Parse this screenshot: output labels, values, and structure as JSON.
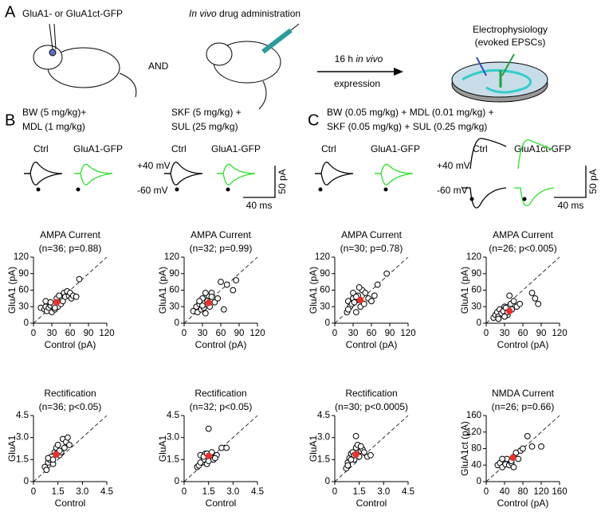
{
  "figure": {
    "panel_labels": [
      "A",
      "B",
      "C"
    ],
    "a": {
      "construct": "GluA1- or GluA1ct-GFP",
      "drug_prefix": "In vivo",
      "drug_suffix": " drug administration",
      "and": "AND",
      "arrow_top_prefix": "16 h ",
      "arrow_top_italic": "in vivo",
      "arrow_bottom": "expression",
      "ephys_1": "Electrophysiology",
      "ephys_2": "(evoked EPSCs)"
    },
    "b": {
      "cond1_line1": "BW (5 mg/kg)+",
      "cond1_line2": "MDL (1 mg/kg)",
      "cond2_line1": "SKF (5 mg/kg) +",
      "cond2_line2": "SUL (25 mg/kg)",
      "ctrl1": "Ctrl",
      "gfp1": "GluA1-GFP",
      "ctrl2": "Ctrl",
      "gfp2": "GluA1-GFP",
      "plus40": "+40 mV",
      "minus60": "-60 mV",
      "scale_y": "50 pA",
      "scale_x": "40 ms"
    },
    "c": {
      "cond_line1": "BW (0.05 mg/kg) + MDL (0.01 mg/kg) +",
      "cond_line2": "SKF (0.05 mg/kg) + SUL (0.25 mg/kg)",
      "ctrl1": "Ctrl",
      "gfp1": "GluA1-GFP",
      "ctrl2": "Ctrl",
      "gfp2": "GluA1ct-GFP",
      "plus40": "+40 mV",
      "minus60": "-60 mV",
      "scale_y": "50 pA",
      "scale_x": "40 ms"
    }
  },
  "chart_data": [
    {
      "type": "scatter",
      "title": "AMPA Current",
      "subtitle": "(n=36; p=0.88)",
      "xlabel": "Control (pA)",
      "ylabel": "GluA1 (pA)",
      "xlim": [
        0,
        120
      ],
      "ylim": [
        0,
        120
      ],
      "xticks": [
        0,
        30,
        60,
        90,
        120
      ],
      "yticks": [
        0,
        30,
        60,
        90,
        120
      ],
      "points": {
        "x": [
          12,
          18,
          20,
          22,
          25,
          28,
          30,
          32,
          35,
          38,
          40,
          42,
          45,
          48,
          50,
          52,
          55,
          58,
          60,
          62,
          65,
          70,
          75,
          20,
          28,
          35
        ],
        "y": [
          28,
          25,
          30,
          22,
          28,
          32,
          20,
          35,
          25,
          45,
          30,
          50,
          35,
          40,
          55,
          48,
          58,
          50,
          55,
          45,
          50,
          48,
          80,
          40,
          38,
          28
        ]
      },
      "mean": {
        "x": 38,
        "y": 38,
        "color": "#e8322a"
      }
    },
    {
      "type": "scatter",
      "title": "AMPA Current",
      "subtitle": "(n=32; p=0.99)",
      "xlabel": "Control (pA)",
      "ylabel": "GluA1 (pA)",
      "xlim": [
        0,
        120
      ],
      "ylim": [
        0,
        120
      ],
      "xticks": [
        0,
        30,
        60,
        90,
        120
      ],
      "yticks": [
        0,
        30,
        60,
        90,
        120
      ],
      "points": {
        "x": [
          15,
          20,
          22,
          25,
          28,
          30,
          32,
          35,
          38,
          40,
          42,
          45,
          50,
          55,
          60,
          65,
          70,
          80,
          85,
          25,
          30,
          35,
          45
        ],
        "y": [
          22,
          30,
          20,
          35,
          25,
          45,
          28,
          18,
          40,
          50,
          30,
          55,
          38,
          45,
          75,
          25,
          70,
          60,
          78,
          40,
          32,
          55,
          48
        ]
      },
      "mean": {
        "x": 40,
        "y": 37,
        "color": "#e8322a"
      }
    },
    {
      "type": "scatter",
      "title": "AMPA Current",
      "subtitle": "(n=30; p=0.78)",
      "xlabel": "Control (pA)",
      "ylabel": "GluA1 (pA)",
      "xlim": [
        0,
        120
      ],
      "ylim": [
        0,
        120
      ],
      "xticks": [
        0,
        30,
        60,
        90,
        120
      ],
      "yticks": [
        0,
        30,
        60,
        90,
        120
      ],
      "points": {
        "x": [
          20,
          22,
          25,
          28,
          30,
          32,
          35,
          38,
          40,
          42,
          45,
          48,
          50,
          55,
          60,
          65,
          70,
          85,
          22,
          30,
          35,
          40
        ],
        "y": [
          20,
          40,
          30,
          35,
          45,
          38,
          20,
          50,
          42,
          30,
          60,
          35,
          55,
          45,
          40,
          50,
          70,
          90,
          25,
          55,
          48,
          65
        ]
      },
      "mean": {
        "x": 42,
        "y": 42,
        "color": "#e8322a"
      }
    },
    {
      "type": "scatter",
      "title": "AMPA Current",
      "subtitle": "(n=26; p<0.005)",
      "xlabel": "Control (pA)",
      "ylabel": "GluA1 (pA)",
      "xlim": [
        0,
        120
      ],
      "ylim": [
        0,
        120
      ],
      "xticks": [
        0,
        30,
        60,
        90,
        120
      ],
      "yticks": [
        0,
        30,
        60,
        90,
        120
      ],
      "points": {
        "x": [
          12,
          15,
          18,
          20,
          22,
          25,
          28,
          30,
          32,
          35,
          38,
          40,
          42,
          45,
          50,
          55,
          75,
          80,
          85,
          20,
          30,
          35
        ],
        "y": [
          10,
          15,
          20,
          12,
          25,
          18,
          22,
          30,
          28,
          15,
          50,
          35,
          25,
          40,
          30,
          35,
          55,
          45,
          35,
          8,
          12,
          20
        ]
      },
      "mean": {
        "x": 38,
        "y": 22,
        "color": "#e8322a"
      }
    },
    {
      "type": "scatter",
      "title": "Rectification",
      "subtitle": "(n=36; p<0.05)",
      "xlabel": "Control",
      "ylabel": "GluA1",
      "xlim": [
        0,
        4.5
      ],
      "ylim": [
        0,
        4.5
      ],
      "xticks": [
        0,
        1.5,
        {
          "value": 3,
          "label": "3.0"
        },
        4.5
      ],
      "yticks": [
        0,
        1.5,
        {
          "value": 3,
          "label": "3.0"
        },
        4.5
      ],
      "points": {
        "x": [
          0.7,
          0.8,
          0.9,
          1.0,
          1.1,
          1.2,
          1.3,
          1.4,
          1.5,
          1.6,
          1.7,
          1.8,
          1.9,
          2.0,
          2.1,
          2.2,
          1.2,
          1.4,
          1.6,
          0.9
        ],
        "y": [
          1.0,
          0.8,
          1.3,
          1.5,
          1.7,
          1.2,
          2.0,
          2.3,
          2.5,
          1.8,
          2.0,
          2.9,
          2.3,
          2.7,
          3.0,
          2.5,
          1.5,
          1.9,
          2.1,
          1.6
        ]
      },
      "mean": {
        "x": 1.4,
        "y": 1.85,
        "color": "#e8322a"
      }
    },
    {
      "type": "scatter",
      "title": "Rectification",
      "subtitle": "(n=32; p<0.05)",
      "xlabel": "Control",
      "ylabel": "GluA1",
      "xlim": [
        0,
        4.5
      ],
      "ylim": [
        0,
        4.5
      ],
      "xticks": [
        0,
        1.5,
        {
          "value": 3,
          "label": "3.0"
        },
        4.5
      ],
      "yticks": [
        0,
        1.5,
        {
          "value": 3,
          "label": "3.0"
        },
        4.5
      ],
      "points": {
        "x": [
          0.8,
          0.9,
          1.0,
          1.1,
          1.2,
          1.3,
          1.4,
          1.5,
          1.6,
          1.7,
          1.8,
          2.0,
          2.3,
          2.6,
          1.0,
          1.2,
          1.4,
          1.9,
          1.5
        ],
        "y": [
          1.0,
          1.1,
          1.8,
          1.3,
          1.5,
          1.9,
          1.2,
          3.6,
          1.7,
          2.0,
          1.5,
          1.8,
          2.3,
          2.3,
          1.3,
          1.7,
          1.9,
          1.6,
          1.4
        ]
      },
      "mean": {
        "x": 1.5,
        "y": 1.75,
        "color": "#e8322a"
      }
    },
    {
      "type": "scatter",
      "title": "Rectification",
      "subtitle": "(n=30; p<0.0005)",
      "xlabel": "Control",
      "ylabel": "GluA1",
      "xlim": [
        0,
        4.5
      ],
      "ylim": [
        0,
        4.5
      ],
      "xticks": [
        0,
        1.5,
        {
          "value": 3,
          "label": "3.0"
        },
        4.5
      ],
      "yticks": [
        0,
        1.5,
        {
          "value": 3,
          "label": "3.0"
        },
        4.5
      ],
      "points": {
        "x": [
          0.7,
          0.8,
          0.9,
          1.0,
          1.1,
          1.2,
          1.3,
          1.4,
          1.5,
          1.6,
          1.7,
          1.8,
          2.0,
          2.2,
          0.8,
          1.0,
          1.3,
          1.6,
          1.2
        ],
        "y": [
          0.9,
          1.3,
          1.6,
          1.9,
          2.0,
          1.5,
          2.3,
          2.5,
          1.7,
          2.1,
          2.2,
          2.0,
          1.7,
          1.8,
          1.1,
          1.5,
          3.1,
          2.4,
          1.8
        ]
      },
      "mean": {
        "x": 1.3,
        "y": 1.85,
        "color": "#e8322a"
      }
    },
    {
      "type": "scatter",
      "title": "NMDA Current",
      "subtitle": "(n=26; p=0.66)",
      "xlabel": "Control (pA)",
      "ylabel": "GluA1ct (pA)",
      "xlim": [
        0,
        160
      ],
      "ylim": [
        0,
        160
      ],
      "xticks": [
        0,
        40,
        80,
        120,
        160
      ],
      "yticks": [
        0,
        40,
        80,
        120,
        160
      ],
      "points": {
        "x": [
          25,
          30,
          35,
          40,
          42,
          45,
          50,
          55,
          60,
          65,
          70,
          75,
          80,
          90,
          100,
          120,
          35,
          55,
          60
        ],
        "y": [
          40,
          45,
          35,
          50,
          42,
          55,
          40,
          45,
          60,
          70,
          55,
          75,
          80,
          110,
          85,
          85,
          55,
          50,
          35
        ]
      },
      "mean": {
        "x": 58,
        "y": 58,
        "color": "#e8322a"
      }
    }
  ]
}
